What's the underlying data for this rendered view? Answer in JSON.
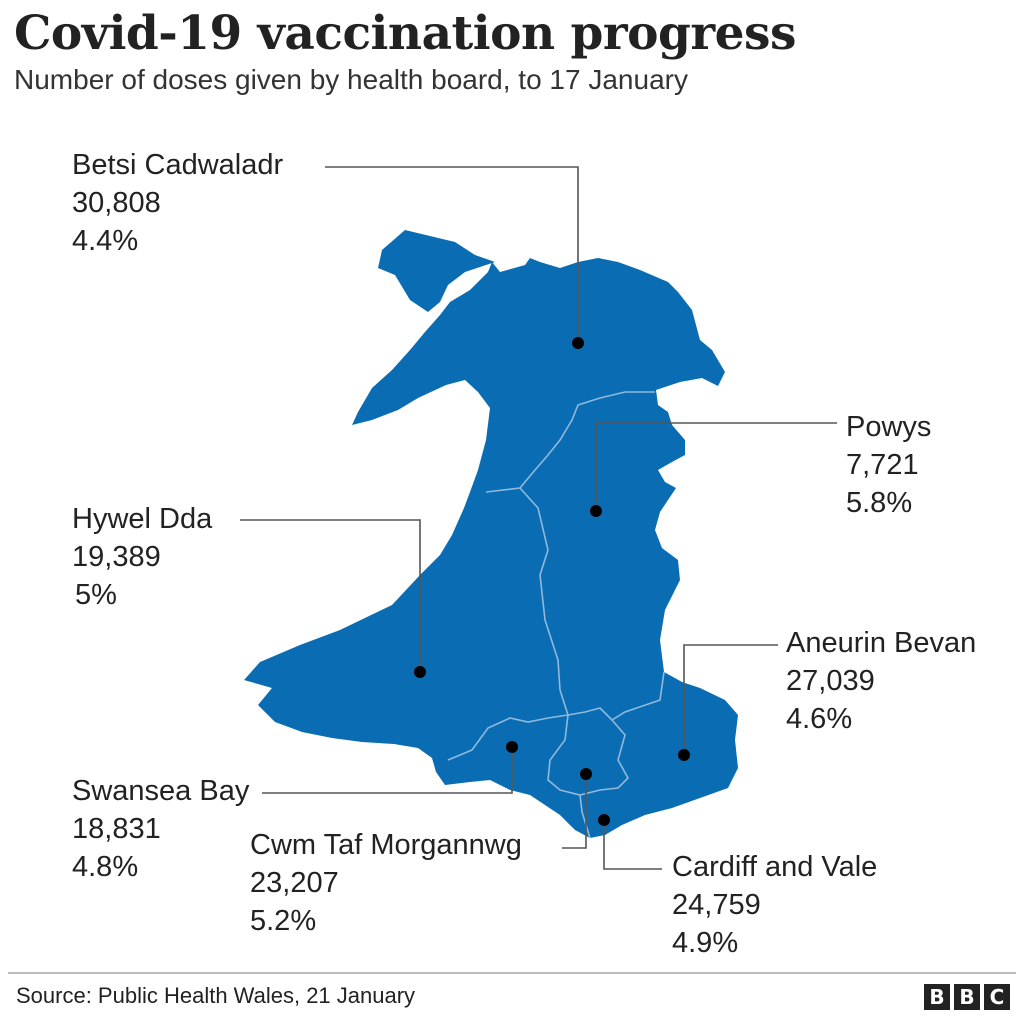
{
  "header": {
    "title": "Covid-19 vaccination progress",
    "subtitle": "Number of doses given by health board, to 17 January"
  },
  "regions": [
    {
      "name": "Betsi Cadwaladr",
      "doses": "30,808",
      "percent": "4.4%"
    },
    {
      "name": "Powys",
      "doses": "7,721",
      "percent": "5.8%"
    },
    {
      "name": "Hywel Dda",
      "doses": "19,389",
      "percent": "5%"
    },
    {
      "name": "Aneurin Bevan",
      "doses": "27,039",
      "percent": "4.6%"
    },
    {
      "name": "Swansea Bay",
      "doses": "18,831",
      "percent": "4.8%"
    },
    {
      "name": "Cwm Taf Morgannwg",
      "doses": "23,207",
      "percent": "5.2%"
    },
    {
      "name": "Cardiff and Vale",
      "doses": "24,759",
      "percent": "4.9%"
    }
  ],
  "footer": {
    "source": "Source: Public Health Wales, 21 January",
    "logo": [
      "B",
      "B",
      "C"
    ]
  },
  "colors": {
    "land": "#0a6db4",
    "boundary": "#8fb9dd",
    "marker": "#000000",
    "leader": "#555555"
  }
}
